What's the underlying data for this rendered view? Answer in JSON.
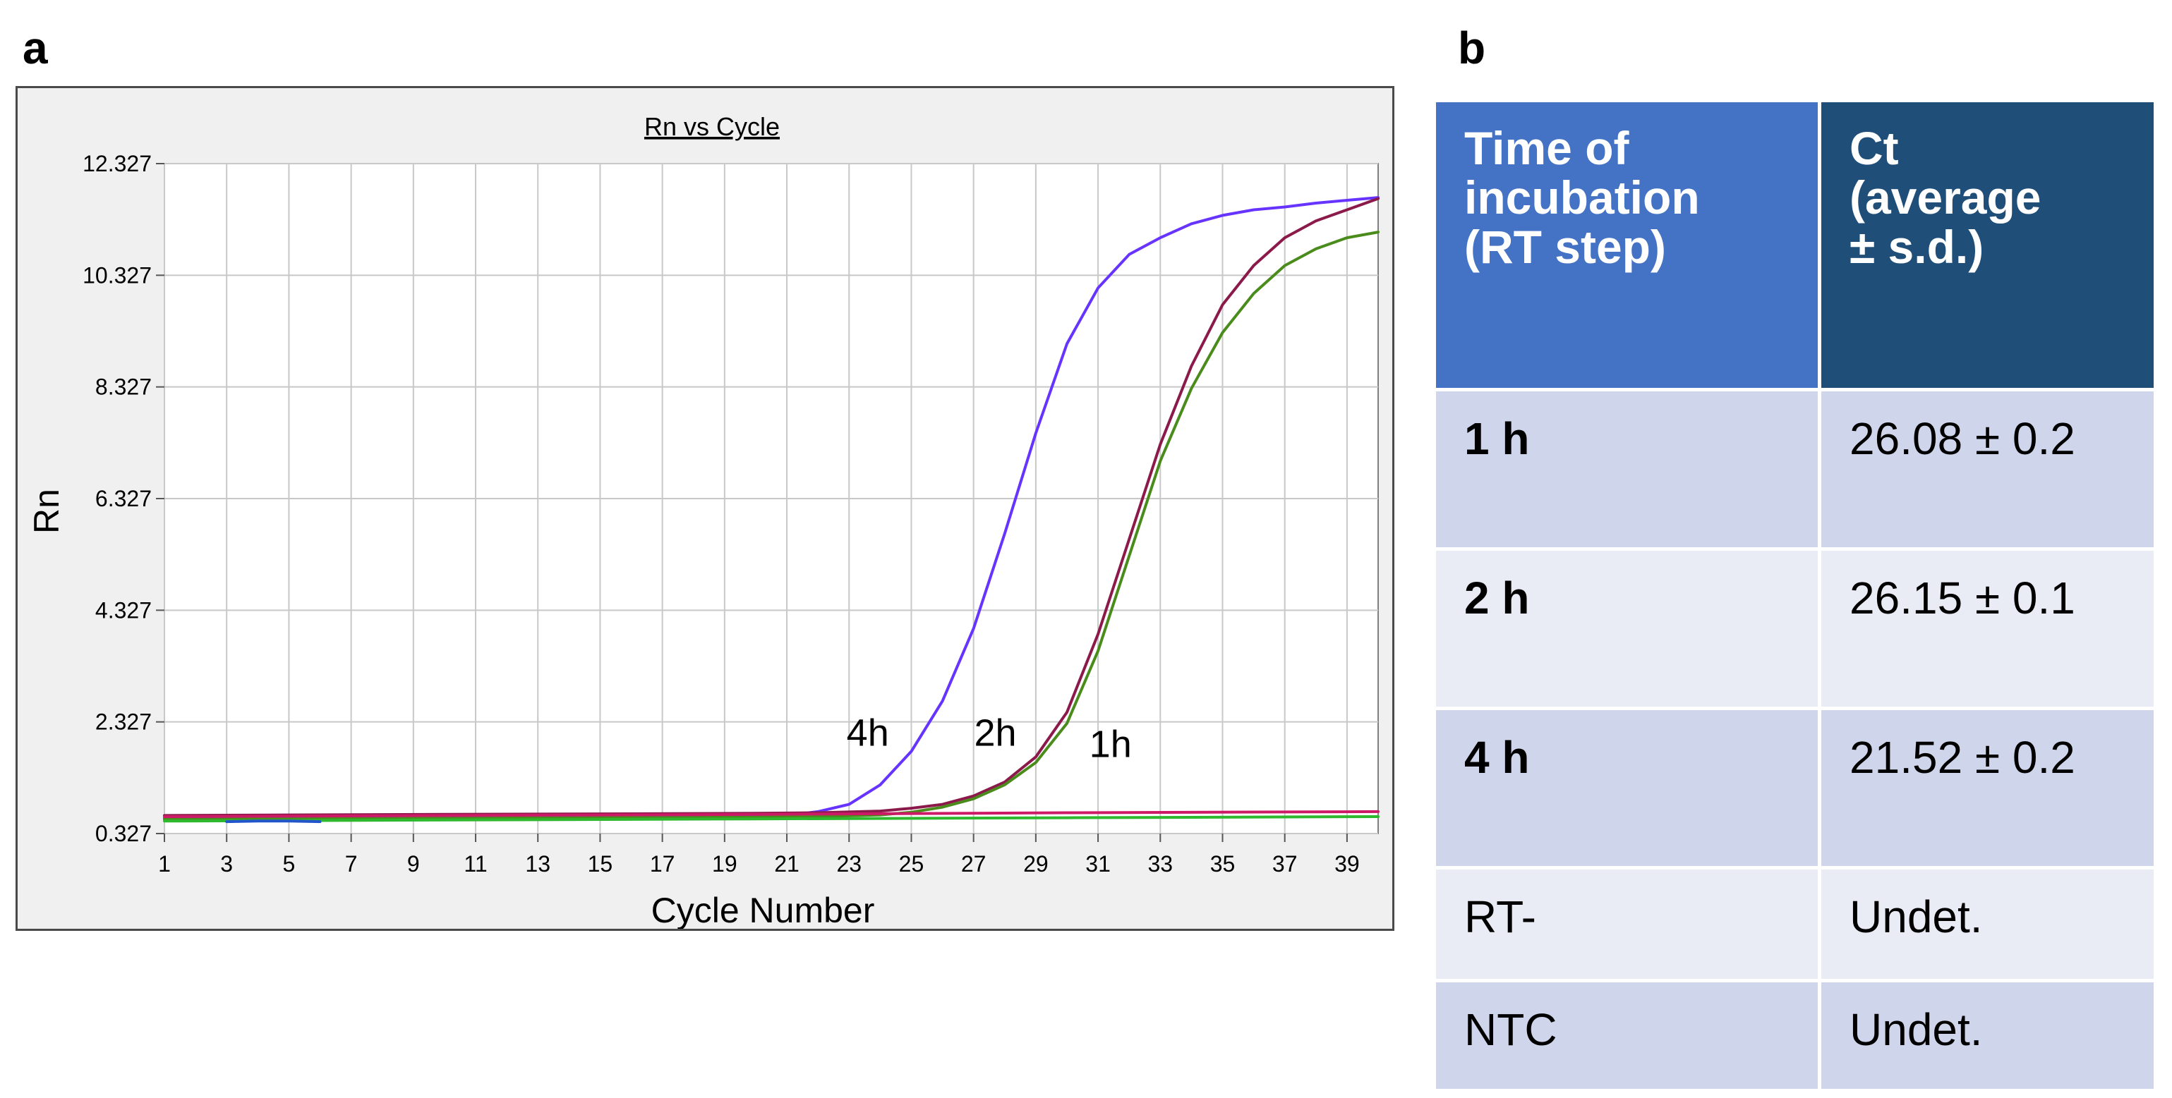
{
  "panels": {
    "a": "a",
    "b": "b"
  },
  "chart_data": {
    "type": "line",
    "title": "Rn vs Cycle",
    "xlabel": "Cycle Number",
    "ylabel": "Rn",
    "xlim": [
      1,
      40
    ],
    "ylim": [
      0.327,
      12.327
    ],
    "xticks": [
      1,
      3,
      5,
      7,
      9,
      11,
      13,
      15,
      17,
      19,
      21,
      23,
      25,
      27,
      29,
      31,
      33,
      35,
      37,
      39
    ],
    "yticks": [
      "0.327",
      "2.327",
      "4.327",
      "6.327",
      "8.327",
      "10.327",
      "12.327"
    ],
    "grid": true,
    "legend": "none",
    "series": [
      {
        "name": "4h",
        "color": "#6633ff",
        "x": [
          1,
          5,
          10,
          15,
          20,
          21,
          22,
          23,
          24,
          25,
          26,
          27,
          28,
          29,
          30,
          31,
          32,
          33,
          34,
          35,
          36,
          37,
          38,
          39,
          40
        ],
        "y": [
          0.6,
          0.61,
          0.62,
          0.62,
          0.63,
          0.65,
          0.72,
          0.85,
          1.2,
          1.8,
          2.7,
          4.0,
          5.7,
          7.5,
          9.1,
          10.1,
          10.7,
          11.0,
          11.25,
          11.4,
          11.5,
          11.55,
          11.62,
          11.67,
          11.72
        ]
      },
      {
        "name": "2h",
        "color": "#8b1a4a",
        "x": [
          1,
          5,
          10,
          15,
          20,
          22,
          24,
          25,
          26,
          27,
          28,
          29,
          30,
          31,
          32,
          33,
          34,
          35,
          36,
          37,
          38,
          39,
          40
        ],
        "y": [
          0.65,
          0.66,
          0.67,
          0.68,
          0.69,
          0.7,
          0.73,
          0.78,
          0.85,
          1.0,
          1.25,
          1.7,
          2.5,
          3.9,
          5.6,
          7.3,
          8.7,
          9.8,
          10.5,
          11.0,
          11.3,
          11.5,
          11.7
        ]
      },
      {
        "name": "1h",
        "color": "#4a8c1c",
        "x": [
          1,
          5,
          10,
          15,
          20,
          22,
          24,
          25,
          26,
          27,
          28,
          29,
          30,
          31,
          32,
          33,
          34,
          35,
          36,
          37,
          38,
          39,
          40
        ],
        "y": [
          0.58,
          0.59,
          0.6,
          0.61,
          0.62,
          0.63,
          0.66,
          0.71,
          0.8,
          0.95,
          1.2,
          1.6,
          2.3,
          3.6,
          5.3,
          7.0,
          8.3,
          9.3,
          10.0,
          10.5,
          10.8,
          11.0,
          11.1
        ]
      },
      {
        "name": "",
        "color": "#cc1a66",
        "x": [
          1,
          10,
          20,
          30,
          40
        ],
        "y": [
          0.63,
          0.65,
          0.67,
          0.7,
          0.72
        ]
      },
      {
        "name": "",
        "color": "#2db82d",
        "x": [
          1,
          10,
          20,
          30,
          40
        ],
        "y": [
          0.55,
          0.57,
          0.59,
          0.61,
          0.63
        ]
      },
      {
        "name": "",
        "color": "#2255cc",
        "x": [
          3,
          4,
          5,
          6
        ],
        "y": [
          0.54,
          0.55,
          0.55,
          0.54
        ]
      }
    ],
    "annotations": [
      {
        "text": "4h",
        "x": 23.6,
        "y": 1.9
      },
      {
        "text": "2h",
        "x": 27.7,
        "y": 1.9
      },
      {
        "text": "1h",
        "x": 31.4,
        "y": 1.7
      }
    ]
  },
  "table": {
    "header": {
      "col1": "Time of\nincubation\n(RT step)",
      "col2": "Ct\n(average\n ± s.d.)"
    },
    "header_colors": {
      "col1": "#4472c4",
      "col2": "#1f4e79"
    },
    "rows": [
      {
        "time": "1 h",
        "ct": "26.08 ± 0.2",
        "bold": true
      },
      {
        "time": "2 h",
        "ct": "26.15 ± 0.1",
        "bold": true
      },
      {
        "time": "4 h",
        "ct": "21.52 ± 0.2",
        "bold": true
      },
      {
        "time": "RT-",
        "ct": "Undet.",
        "bold": false
      },
      {
        "time": "NTC",
        "ct": "Undet.",
        "bold": false
      }
    ]
  }
}
